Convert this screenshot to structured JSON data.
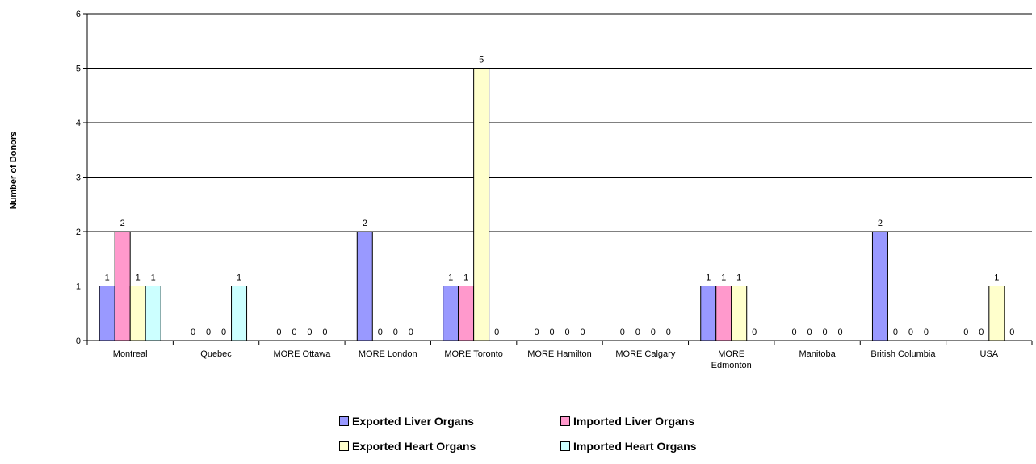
{
  "chart_data": {
    "type": "bar",
    "title": "",
    "xlabel": "",
    "ylabel": "Number of Donors",
    "ylim": [
      0,
      6
    ],
    "yticks": [
      0,
      1,
      2,
      3,
      4,
      5,
      6
    ],
    "grid": true,
    "legend_position": "bottom",
    "categories": [
      "Montreal",
      "Quebec",
      "MORE Ottawa",
      "MORE London",
      "MORE Toronto",
      "MORE Hamilton",
      "MORE Calgary",
      "MORE Edmonton",
      "Manitoba",
      "British Columbia",
      "USA"
    ],
    "category_lines": [
      [
        "Montreal"
      ],
      [
        "Quebec"
      ],
      [
        "MORE Ottawa"
      ],
      [
        "MORE London"
      ],
      [
        "MORE Toronto"
      ],
      [
        "MORE Hamilton"
      ],
      [
        "MORE Calgary"
      ],
      [
        "MORE",
        "Edmonton"
      ],
      [
        "Manitoba"
      ],
      [
        "British Columbia"
      ],
      [
        "USA"
      ]
    ],
    "series": [
      {
        "name": "Exported Liver Organs",
        "color": "#9999ff",
        "values": [
          1,
          0,
          0,
          2,
          1,
          0,
          0,
          1,
          0,
          2,
          0
        ]
      },
      {
        "name": "Imported Liver Organs",
        "color": "#ff99cc",
        "values": [
          2,
          0,
          0,
          0,
          1,
          0,
          0,
          1,
          0,
          0,
          0
        ]
      },
      {
        "name": "Exported Heart Organs",
        "color": "#ffffcc",
        "values": [
          1,
          0,
          0,
          0,
          5,
          0,
          0,
          1,
          0,
          0,
          1
        ]
      },
      {
        "name": "Imported Heart Organs",
        "color": "#ccffff",
        "values": [
          1,
          1,
          0,
          0,
          0,
          0,
          0,
          0,
          0,
          0,
          0
        ]
      }
    ],
    "data_labels": [
      [
        "1",
        "0",
        "0",
        "2",
        "1",
        "0",
        "0",
        "1",
        "0",
        "2",
        "0"
      ],
      [
        "2",
        "0",
        "0",
        "0",
        "1",
        "0",
        "0",
        "1",
        "0",
        "0",
        "0"
      ],
      [
        "1",
        "0",
        "0",
        "0",
        "5",
        "0",
        "0",
        "1",
        "0",
        "0",
        "1"
      ],
      [
        "1",
        "1",
        "0",
        "0",
        "0",
        "0",
        "0",
        "0",
        "0",
        "0",
        "0"
      ]
    ]
  }
}
